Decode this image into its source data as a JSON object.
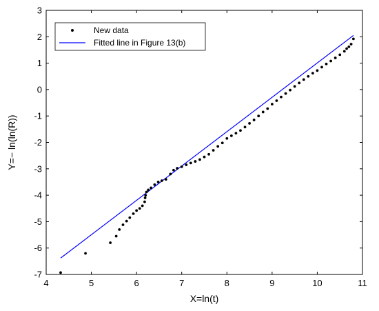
{
  "chart_data": {
    "type": "scatter",
    "xlabel": "X=ln(t)",
    "ylabel": "Y=− ln(ln(R))",
    "xlim": [
      4,
      11
    ],
    "ylim": [
      -7,
      3
    ],
    "xticks": [
      4,
      5,
      6,
      7,
      8,
      9,
      10,
      11
    ],
    "yticks": [
      -7,
      -6,
      -5,
      -4,
      -3,
      -2,
      -1,
      0,
      1,
      2,
      3
    ],
    "grid": false,
    "legend_position": "top-left",
    "colors": {
      "scatter": "#000000",
      "line": "#0000ff"
    },
    "series": [
      {
        "name": "New data",
        "kind": "points",
        "x": [
          4.32,
          4.87,
          5.42,
          5.55,
          5.62,
          5.7,
          5.78,
          5.85,
          5.93,
          6.0,
          6.07,
          6.13,
          6.18,
          6.19,
          6.2,
          6.22,
          6.26,
          6.32,
          6.4,
          6.48,
          6.56,
          6.65,
          6.75,
          6.82,
          6.9,
          7.0,
          7.1,
          7.2,
          7.3,
          7.4,
          7.5,
          7.6,
          7.7,
          7.8,
          7.9,
          8.0,
          8.1,
          8.2,
          8.3,
          8.4,
          8.5,
          8.6,
          8.7,
          8.8,
          8.9,
          9.0,
          9.1,
          9.2,
          9.3,
          9.4,
          9.5,
          9.6,
          9.7,
          9.8,
          9.9,
          10.0,
          10.1,
          10.2,
          10.3,
          10.4,
          10.5,
          10.6,
          10.65,
          10.7,
          10.75,
          10.8
        ],
        "y": [
          -6.93,
          -6.2,
          -5.8,
          -5.55,
          -5.3,
          -5.12,
          -4.98,
          -4.85,
          -4.7,
          -4.58,
          -4.5,
          -4.4,
          -4.25,
          -4.1,
          -4.0,
          -3.88,
          -3.8,
          -3.72,
          -3.6,
          -3.5,
          -3.45,
          -3.4,
          -3.2,
          -3.05,
          -2.98,
          -2.92,
          -2.85,
          -2.78,
          -2.72,
          -2.65,
          -2.55,
          -2.45,
          -2.3,
          -2.15,
          -2.02,
          -1.85,
          -1.75,
          -1.65,
          -1.55,
          -1.42,
          -1.28,
          -1.15,
          -1.0,
          -0.85,
          -0.72,
          -0.55,
          -0.42,
          -0.28,
          -0.15,
          -0.02,
          0.12,
          0.25,
          0.38,
          0.5,
          0.62,
          0.72,
          0.85,
          0.97,
          1.08,
          1.2,
          1.32,
          1.45,
          1.55,
          1.62,
          1.72,
          1.92
        ]
      },
      {
        "name": "Fitted line in Figure 13(b)",
        "kind": "line",
        "x": [
          4.32,
          10.8
        ],
        "y": [
          -6.38,
          2.05
        ]
      }
    ]
  }
}
